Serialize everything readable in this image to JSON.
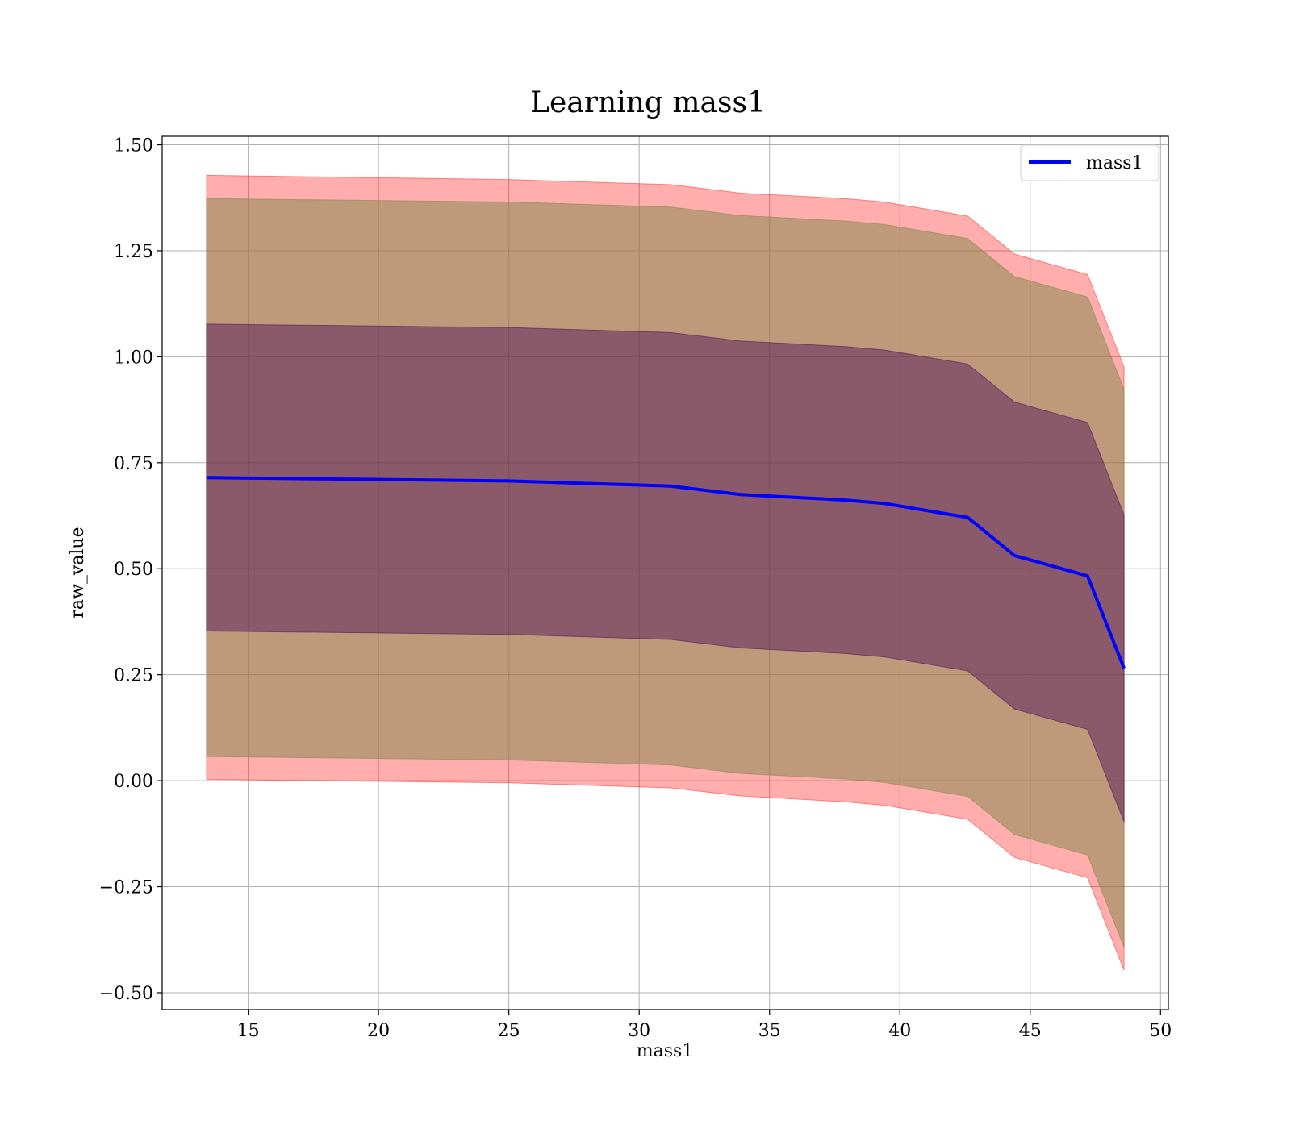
{
  "chart_data": {
    "type": "line",
    "title": "Learning mass1",
    "xlabel": "mass1",
    "ylabel": "raw_value",
    "xlim": [
      11.7,
      50.3
    ],
    "ylim": [
      -0.54,
      1.52
    ],
    "xticks": [
      15,
      20,
      25,
      30,
      35,
      40,
      45,
      50
    ],
    "xtick_labels": [
      "15",
      "20",
      "25",
      "30",
      "35",
      "40",
      "45",
      "50"
    ],
    "yticks": [
      -0.5,
      -0.25,
      0.0,
      0.25,
      0.5,
      0.75,
      1.0,
      1.25,
      1.5
    ],
    "ytick_labels": [
      "−0.50",
      "−0.25",
      "0.00",
      "0.25",
      "0.50",
      "0.75",
      "1.00",
      "1.25",
      "1.50"
    ],
    "grid": true,
    "legend": {
      "position": "top-right",
      "entries": [
        "mass1"
      ]
    },
    "x": [
      13.4,
      25.0,
      31.2,
      33.9,
      37.9,
      39.4,
      42.6,
      44.4,
      47.2,
      48.6
    ],
    "series": [
      {
        "name": "mass1",
        "color": "#0000ff",
        "values": [
          0.715,
          0.707,
          0.695,
          0.675,
          0.662,
          0.654,
          0.621,
          0.531,
          0.483,
          0.265
        ]
      }
    ],
    "bands": [
      {
        "role": "outer",
        "color": "#ff0000",
        "opacity": 0.32,
        "upper": [
          1.428,
          1.418,
          1.406,
          1.386,
          1.373,
          1.365,
          1.332,
          1.242,
          1.194,
          0.976
        ],
        "lower": [
          0.003,
          -0.005,
          -0.017,
          -0.036,
          -0.05,
          -0.058,
          -0.091,
          -0.181,
          -0.229,
          -0.447
        ]
      },
      {
        "role": "middle",
        "color": "#8a8a50",
        "opacity": 0.55,
        "upper": [
          1.373,
          1.365,
          1.353,
          1.333,
          1.32,
          1.312,
          1.279,
          1.189,
          1.141,
          0.923
        ],
        "lower": [
          0.057,
          0.049,
          0.037,
          0.017,
          0.004,
          -0.004,
          -0.037,
          -0.127,
          -0.175,
          -0.393
        ]
      },
      {
        "role": "inner",
        "color": "#4a0c56",
        "opacity": 0.45,
        "upper": [
          1.077,
          1.069,
          1.057,
          1.037,
          1.024,
          1.016,
          0.983,
          0.893,
          0.845,
          0.627
        ],
        "lower": [
          0.353,
          0.345,
          0.333,
          0.313,
          0.3,
          0.292,
          0.259,
          0.169,
          0.121,
          -0.097
        ]
      }
    ]
  }
}
